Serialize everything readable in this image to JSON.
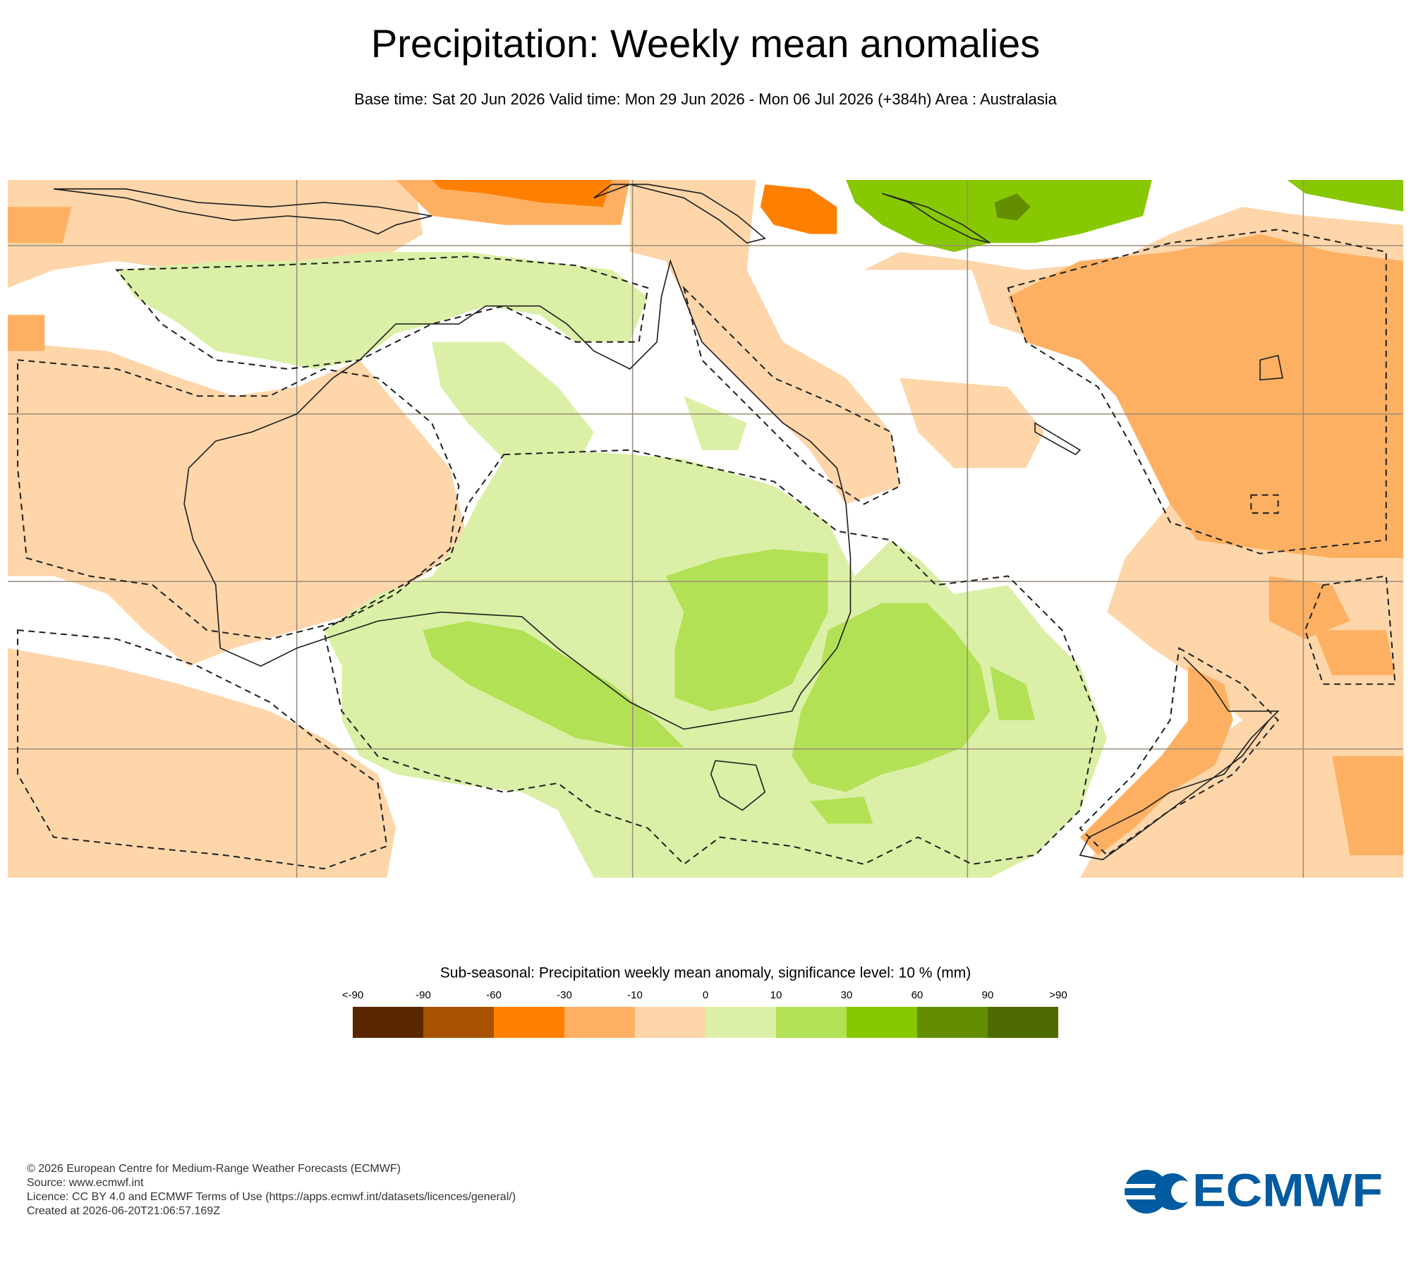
{
  "header": {
    "title": "Precipitation: Weekly mean anomalies",
    "subtitle": "Base time: Sat 20 Jun 2026 Valid time: Mon 29 Jun 2026 - Mon 06 Jul 2026 (+384h) Area : Australasia"
  },
  "legend": {
    "title": "Sub-seasonal: Precipitation weekly mean anomaly, significance level: 10 % (mm)",
    "labels": [
      "<-90",
      "-90",
      "-60",
      "-30",
      "-10",
      "0",
      "10",
      "30",
      "60",
      "90",
      ">90"
    ],
    "colors": [
      "#5a2700",
      "#a65200",
      "#ff8000",
      "#feb062",
      "#fed6aa",
      "#dbf0a6",
      "#b3e155",
      "#88c800",
      "#628e00",
      "#4f6a00"
    ]
  },
  "footer": {
    "lines": [
      "© 2026 European Centre for Medium-Range Weather Forecasts (ECMWF)",
      "Source: www.ecmwf.int",
      "Licence: CC BY 4.0 and ECMWF Terms of Use (https://apps.ecmwf.int/datasets/licences/general/)",
      "Created at 2026-06-20T21:06:57.169Z"
    ]
  },
  "logo": {
    "text": "ECMWF"
  }
}
